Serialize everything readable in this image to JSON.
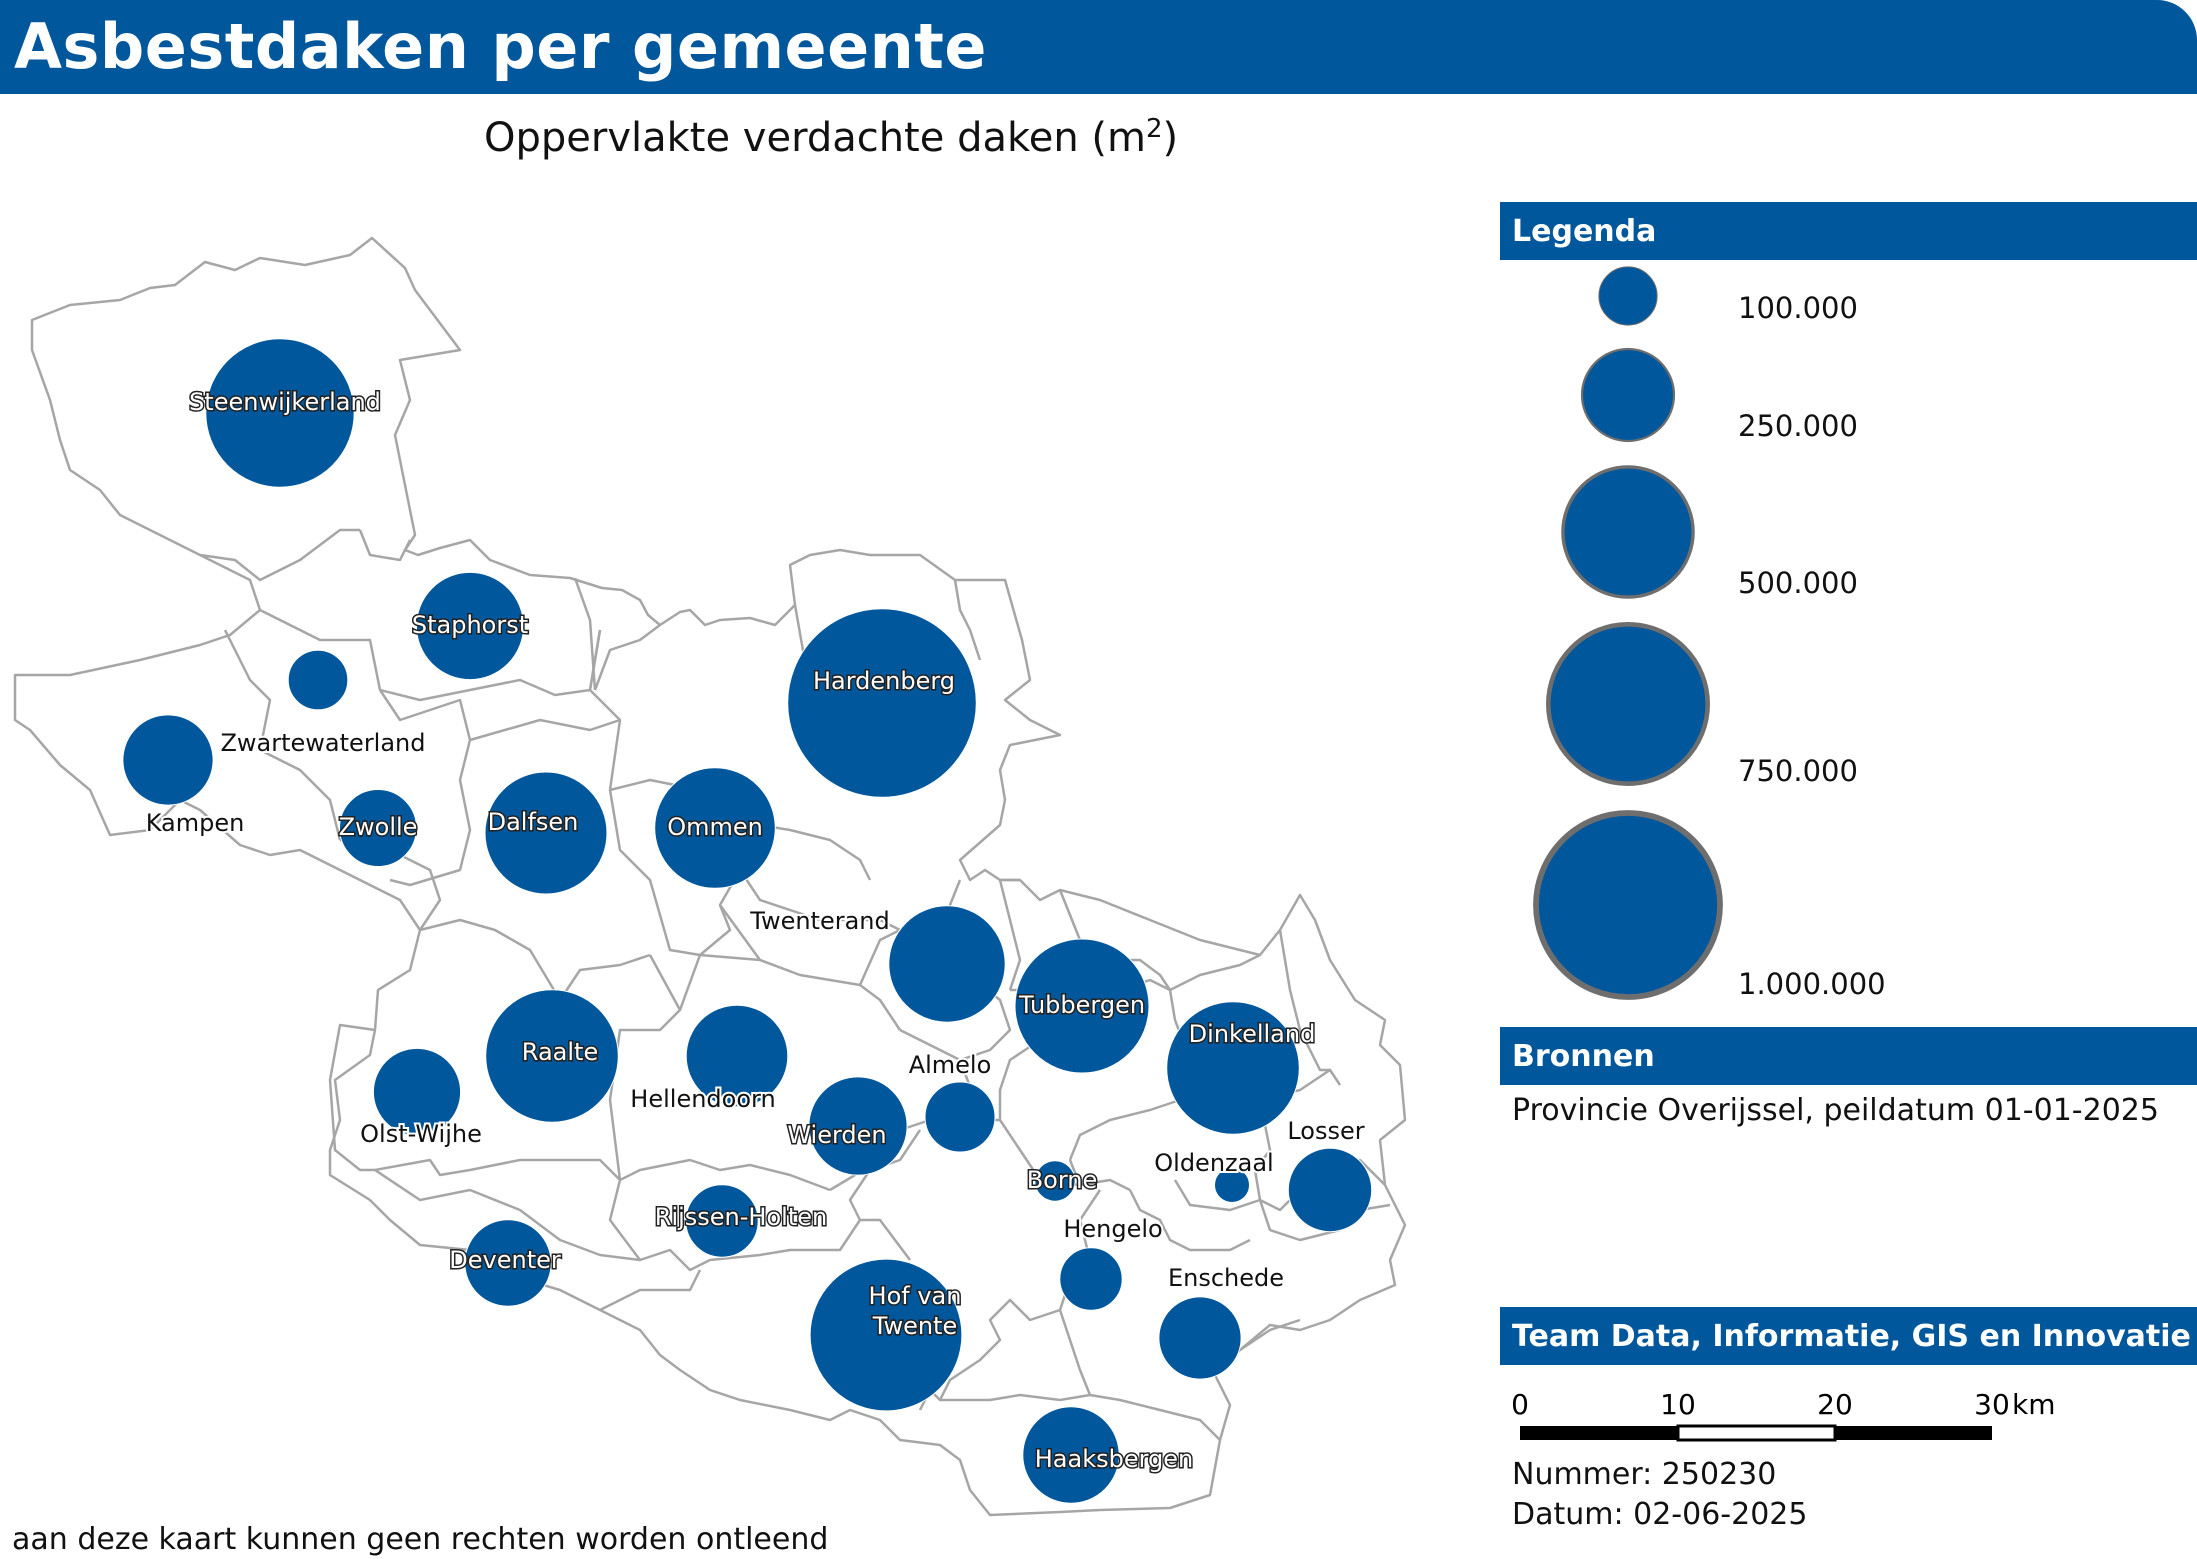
{
  "title": "Asbestdaken per gemeente",
  "subtitle": {
    "text": "Oppervlakte verdachte daken (m",
    "sup": "2",
    "close": ")"
  },
  "legend": {
    "header": "Legenda",
    "items": [
      {
        "label": "100.000",
        "value": 100000
      },
      {
        "label": "250.000",
        "value": 250000
      },
      {
        "label": "500.000",
        "value": 500000
      },
      {
        "label": "750.000",
        "value": 750000
      },
      {
        "label": "1.000.000",
        "value": 1000000
      }
    ]
  },
  "sources": {
    "header": "Bronnen",
    "text": "Provincie Overijssel, peildatum 01-01-2025"
  },
  "team": {
    "header": "Team Data, Informatie, GIS en Innovatie"
  },
  "scale": {
    "ticks": [
      "0",
      "10",
      "20",
      "30"
    ],
    "unit": "km"
  },
  "number": "Nummer: 250230",
  "date": "Datum: 02-06-2025",
  "disclaimer": "aan deze kaart kunnen geen rechten worden ontleend",
  "colors": {
    "accent": "#00579b",
    "border": "#a6a6a6",
    "legend_ring": "#6e6e6e"
  },
  "municipalities": [
    {
      "name": "Steenwijkerland",
      "value": 650000,
      "labeled": true
    },
    {
      "name": "Staphorst",
      "value": 340000,
      "labeled": true
    },
    {
      "name": "Zwartewaterland",
      "value": 105000,
      "labeled": false
    },
    {
      "name": "Kampen",
      "value": 240000,
      "labeled": false
    },
    {
      "name": "Zwolle",
      "value": 175000,
      "labeled": true
    },
    {
      "name": "Dalfsen",
      "value": 440000,
      "labeled": true
    },
    {
      "name": "Ommen",
      "value": 430000,
      "labeled": true
    },
    {
      "name": "Hardenberg",
      "value": 1050000,
      "labeled": true
    },
    {
      "name": "Twenterand",
      "value": 400000,
      "labeled": false
    },
    {
      "name": "Tubbergen",
      "value": 530000,
      "labeled": true
    },
    {
      "name": "Dinkelland",
      "value": 520000,
      "labeled": true
    },
    {
      "name": "Raalte",
      "value": 520000,
      "labeled": true
    },
    {
      "name": "Hellendoorn",
      "value": 305000,
      "labeled": false
    },
    {
      "name": "Olst-Wijhe",
      "value": 225000,
      "labeled": false
    },
    {
      "name": "Wierden",
      "value": 285000,
      "labeled": true
    },
    {
      "name": "Almelo",
      "value": 145000,
      "labeled": false
    },
    {
      "name": "Borne",
      "value": 48000,
      "labeled": true
    },
    {
      "name": "Oldenzaal",
      "value": 36000,
      "labeled": false
    },
    {
      "name": "Losser",
      "value": 205000,
      "labeled": false
    },
    {
      "name": "Rijssen-Holten",
      "value": 155000,
      "labeled": true
    },
    {
      "name": "Deventer",
      "value": 220000,
      "labeled": true
    },
    {
      "name": "Hengelo",
      "value": 115000,
      "labeled": false
    },
    {
      "name": "Enschede",
      "value": 200000,
      "labeled": false
    },
    {
      "name": "Hof van Twente",
      "value": 680000,
      "labeled": true
    },
    {
      "name": "Haaksbergen",
      "value": 275000,
      "labeled": true
    }
  ]
}
